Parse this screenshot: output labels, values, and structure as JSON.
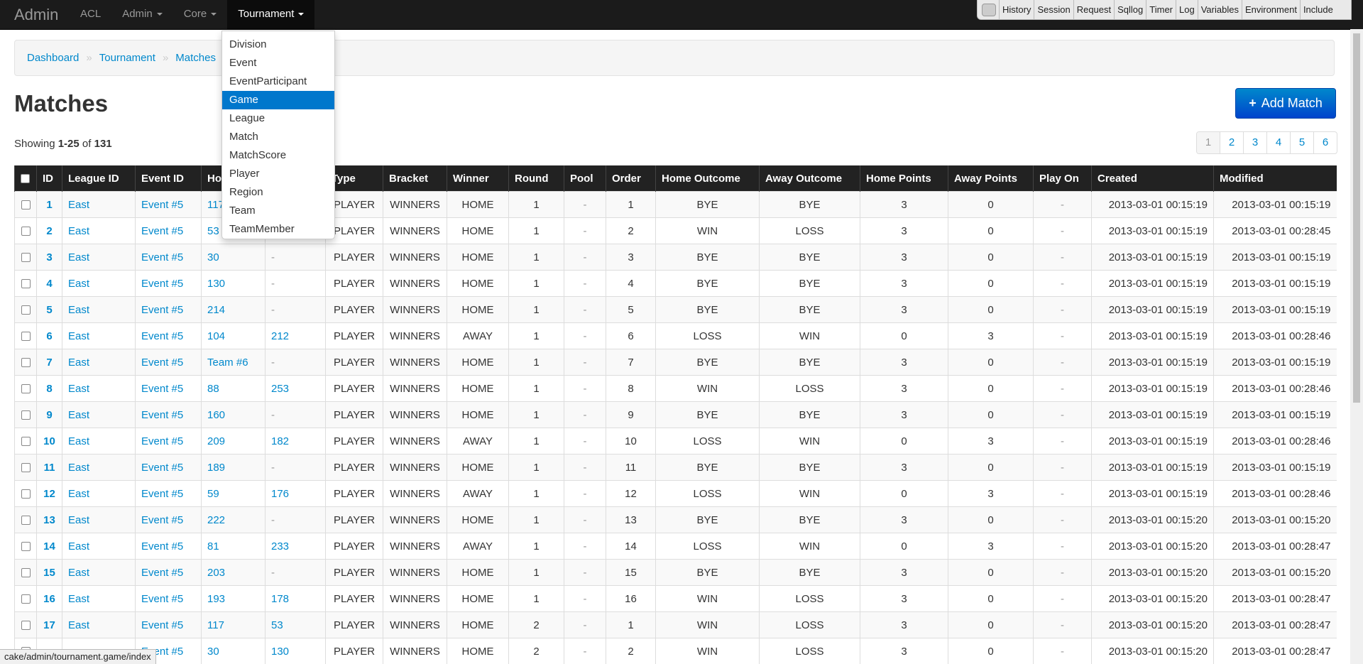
{
  "navbar": {
    "brand": "Admin",
    "items": [
      "ACL",
      "Admin",
      "Core",
      "Tournament"
    ],
    "active_index": 3
  },
  "debug_toolbar": [
    "History",
    "Session",
    "Request",
    "Sqllog",
    "Timer",
    "Log",
    "Variables",
    "Environment",
    "Include"
  ],
  "dropdown": {
    "items": [
      "Division",
      "Event",
      "EventParticipant",
      "Game",
      "League",
      "Match",
      "MatchScore",
      "Player",
      "Region",
      "Team",
      "TeamMember"
    ],
    "active_index": 3
  },
  "breadcrumb": [
    "Dashboard",
    "Tournament",
    "Matches"
  ],
  "title": "Matches",
  "add_button": "Add Match",
  "showing": {
    "label": "Showing",
    "range": "1-25",
    "of": "of",
    "total": 131
  },
  "pagination": {
    "pages": [
      1,
      2,
      3,
      4,
      5,
      6
    ],
    "active_index": 0
  },
  "table": {
    "headers": [
      "ID",
      "League ID",
      "Event ID",
      "Ho",
      null,
      "Type",
      "Bracket",
      "Winner",
      "Round",
      "Pool",
      "Order",
      "Home Outcome",
      "Away Outcome",
      "Home Points",
      "Away Points",
      "Play On",
      "Created",
      "Modified"
    ],
    "rows": [
      [
        1,
        "East",
        "Event #5",
        117,
        null,
        "PLAYER",
        "WINNERS",
        "HOME",
        1,
        "-",
        1,
        "BYE",
        "BYE",
        3,
        0,
        "-",
        "2013-03-01 00:15:19",
        "2013-03-01 00:15:19"
      ],
      [
        2,
        "East",
        "Event #5",
        53,
        null,
        "PLAYER",
        "WINNERS",
        "HOME",
        1,
        "-",
        2,
        "WIN",
        "LOSS",
        3,
        0,
        "-",
        "2013-03-01 00:15:19",
        "2013-03-01 00:28:45"
      ],
      [
        3,
        "East",
        "Event #5",
        30,
        "-",
        "PLAYER",
        "WINNERS",
        "HOME",
        1,
        "-",
        3,
        "BYE",
        "BYE",
        3,
        0,
        "-",
        "2013-03-01 00:15:19",
        "2013-03-01 00:15:19"
      ],
      [
        4,
        "East",
        "Event #5",
        130,
        "-",
        "PLAYER",
        "WINNERS",
        "HOME",
        1,
        "-",
        4,
        "BYE",
        "BYE",
        3,
        0,
        "-",
        "2013-03-01 00:15:19",
        "2013-03-01 00:15:19"
      ],
      [
        5,
        "East",
        "Event #5",
        214,
        "-",
        "PLAYER",
        "WINNERS",
        "HOME",
        1,
        "-",
        5,
        "BYE",
        "BYE",
        3,
        0,
        "-",
        "2013-03-01 00:15:19",
        "2013-03-01 00:15:19"
      ],
      [
        6,
        "East",
        "Event #5",
        104,
        212,
        "PLAYER",
        "WINNERS",
        "AWAY",
        1,
        "-",
        6,
        "LOSS",
        "WIN",
        0,
        3,
        "-",
        "2013-03-01 00:15:19",
        "2013-03-01 00:28:46"
      ],
      [
        7,
        "East",
        "Event #5",
        "Team #6",
        "-",
        "PLAYER",
        "WINNERS",
        "HOME",
        1,
        "-",
        7,
        "BYE",
        "BYE",
        3,
        0,
        "-",
        "2013-03-01 00:15:19",
        "2013-03-01 00:15:19"
      ],
      [
        8,
        "East",
        "Event #5",
        88,
        253,
        "PLAYER",
        "WINNERS",
        "HOME",
        1,
        "-",
        8,
        "WIN",
        "LOSS",
        3,
        0,
        "-",
        "2013-03-01 00:15:19",
        "2013-03-01 00:28:46"
      ],
      [
        9,
        "East",
        "Event #5",
        160,
        "-",
        "PLAYER",
        "WINNERS",
        "HOME",
        1,
        "-",
        9,
        "BYE",
        "BYE",
        3,
        0,
        "-",
        "2013-03-01 00:15:19",
        "2013-03-01 00:15:19"
      ],
      [
        10,
        "East",
        "Event #5",
        209,
        182,
        "PLAYER",
        "WINNERS",
        "AWAY",
        1,
        "-",
        10,
        "LOSS",
        "WIN",
        0,
        3,
        "-",
        "2013-03-01 00:15:19",
        "2013-03-01 00:28:46"
      ],
      [
        11,
        "East",
        "Event #5",
        189,
        "-",
        "PLAYER",
        "WINNERS",
        "HOME",
        1,
        "-",
        11,
        "BYE",
        "BYE",
        3,
        0,
        "-",
        "2013-03-01 00:15:19",
        "2013-03-01 00:15:19"
      ],
      [
        12,
        "East",
        "Event #5",
        59,
        176,
        "PLAYER",
        "WINNERS",
        "AWAY",
        1,
        "-",
        12,
        "LOSS",
        "WIN",
        0,
        3,
        "-",
        "2013-03-01 00:15:19",
        "2013-03-01 00:28:46"
      ],
      [
        13,
        "East",
        "Event #5",
        222,
        "-",
        "PLAYER",
        "WINNERS",
        "HOME",
        1,
        "-",
        13,
        "BYE",
        "BYE",
        3,
        0,
        "-",
        "2013-03-01 00:15:20",
        "2013-03-01 00:15:20"
      ],
      [
        14,
        "East",
        "Event #5",
        81,
        233,
        "PLAYER",
        "WINNERS",
        "AWAY",
        1,
        "-",
        14,
        "LOSS",
        "WIN",
        0,
        3,
        "-",
        "2013-03-01 00:15:20",
        "2013-03-01 00:28:47"
      ],
      [
        15,
        "East",
        "Event #5",
        203,
        "-",
        "PLAYER",
        "WINNERS",
        "HOME",
        1,
        "-",
        15,
        "BYE",
        "BYE",
        3,
        0,
        "-",
        "2013-03-01 00:15:20",
        "2013-03-01 00:15:20"
      ],
      [
        16,
        "East",
        "Event #5",
        193,
        178,
        "PLAYER",
        "WINNERS",
        "HOME",
        1,
        "-",
        16,
        "WIN",
        "LOSS",
        3,
        0,
        "-",
        "2013-03-01 00:15:20",
        "2013-03-01 00:28:47"
      ],
      [
        17,
        "East",
        "Event #5",
        117,
        53,
        "PLAYER",
        "WINNERS",
        "HOME",
        2,
        "-",
        1,
        "WIN",
        "LOSS",
        3,
        0,
        "-",
        "2013-03-01 00:15:20",
        "2013-03-01 00:28:47"
      ],
      [
        null,
        null,
        "Event #5",
        30,
        130,
        "PLAYER",
        "WINNERS",
        "HOME",
        2,
        "-",
        2,
        "WIN",
        "LOSS",
        3,
        0,
        "-",
        "2013-03-01 00:15:20",
        "2013-03-01 00:28:47"
      ]
    ]
  },
  "status_bar": "cake/admin/tournament.game/index"
}
